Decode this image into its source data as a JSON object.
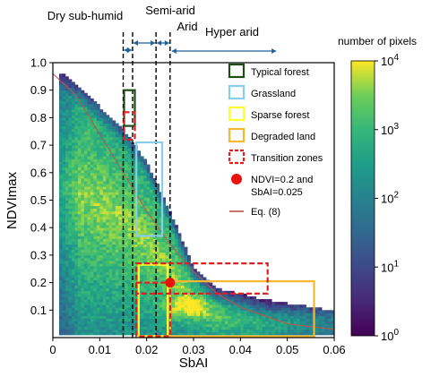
{
  "chart_data": {
    "type": "heatmap",
    "title": "",
    "xlabel": "SbAI",
    "ylabel": "NDVImax",
    "xlim": [
      0,
      0.06
    ],
    "ylim": [
      0,
      1.0
    ],
    "xticks": [
      0,
      0.01,
      0.02,
      0.03,
      0.04,
      0.05,
      0.06
    ],
    "xtick_labels": [
      "0",
      "0.01",
      "0.02",
      "0.03",
      "0.04",
      "0.05",
      "0.06"
    ],
    "yticks": [
      0.1,
      0.2,
      0.3,
      0.4,
      0.5,
      0.6,
      0.7,
      0.8,
      0.9,
      1.0
    ],
    "ytick_labels": [
      "0.1",
      "0.2",
      "0.3",
      "0.4",
      "0.5",
      "0.6",
      "0.7",
      "0.8",
      "0.9",
      "1.0"
    ],
    "colorbar": {
      "title": "number of pixels",
      "scale": "log",
      "range": [
        1,
        10000
      ],
      "ticks": [
        {
          "value": 1,
          "base": "10",
          "exp": "0"
        },
        {
          "value": 10,
          "base": "10",
          "exp": "1"
        },
        {
          "value": 100,
          "base": "10",
          "exp": "2"
        },
        {
          "value": 1000,
          "base": "10",
          "exp": "3"
        },
        {
          "value": 10000,
          "base": "10",
          "exp": "4"
        }
      ],
      "colormap": "viridis"
    },
    "density_ridge": [
      {
        "x": 0.002,
        "y": 0.9
      },
      {
        "x": 0.01,
        "y": 0.78
      },
      {
        "x": 0.015,
        "y": 0.7
      },
      {
        "x": 0.02,
        "y": 0.58
      },
      {
        "x": 0.025,
        "y": 0.4
      },
      {
        "x": 0.03,
        "y": 0.2
      },
      {
        "x": 0.035,
        "y": 0.12
      },
      {
        "x": 0.045,
        "y": 0.08
      }
    ],
    "peak": {
      "x": 0.028,
      "y": 0.11
    },
    "aridity_zones": [
      {
        "label": "Dry sub-humid",
        "x_start": 0.015,
        "x_end": 0.017
      },
      {
        "label": "Semi-arid",
        "x_start": 0.017,
        "x_end": 0.022
      },
      {
        "label": "Arid",
        "x_start": 0.022,
        "x_end": 0.025
      },
      {
        "label": "Hyper arid",
        "x_start": 0.025,
        "x_end": 0.048
      }
    ],
    "zone_boundaries": [
      0.015,
      0.017,
      0.022,
      0.025
    ],
    "rectangles": [
      {
        "name": "Typical forest",
        "color": "#1e4d14",
        "dashed": false,
        "x": [
          0.0152,
          0.0175
        ],
        "y": [
          0.77,
          0.9
        ]
      },
      {
        "name": "Grassland",
        "color": "#87ceeb",
        "dashed": false,
        "x": [
          0.0178,
          0.0233
        ],
        "y": [
          0.37,
          0.71
        ]
      },
      {
        "name": "Sparse forest",
        "color": "#ffff2e",
        "dashed": false,
        "x": [
          0.0183,
          0.0245
        ],
        "y": [
          0.005,
          0.265
        ]
      },
      {
        "name": "Degraded land",
        "color": "#f5b82e",
        "dashed": false,
        "x": [
          0.025,
          0.0557
        ],
        "y": [
          0.005,
          0.205
        ]
      },
      {
        "name": "Transition zones",
        "color": "#e02020",
        "dashed": true,
        "x": [
          0.0152,
          0.0175
        ],
        "y": [
          0.72,
          0.82
        ]
      },
      {
        "name": "Transition zones",
        "color": "#e02020",
        "dashed": true,
        "x": [
          0.0178,
          0.0458
        ],
        "y": [
          0.16,
          0.27
        ]
      },
      {
        "name": "Transition zones",
        "color": "#e02020",
        "dashed": true,
        "x": [
          0.0178,
          0.025
        ],
        "y": [
          0.005,
          0.2
        ]
      }
    ],
    "point": {
      "label_line1": "NDVI=0.2 and",
      "label_line2": "SbAI=0.025",
      "x": 0.025,
      "y": 0.2,
      "color": "#e8140c"
    },
    "curve": {
      "label": "Eq. (8)",
      "color": "#c8504a",
      "points": [
        [
          0.0,
          0.96
        ],
        [
          0.005,
          0.88
        ],
        [
          0.01,
          0.74
        ],
        [
          0.015,
          0.6
        ],
        [
          0.02,
          0.46
        ],
        [
          0.025,
          0.34
        ],
        [
          0.03,
          0.24
        ],
        [
          0.035,
          0.16
        ],
        [
          0.04,
          0.11
        ],
        [
          0.045,
          0.08
        ],
        [
          0.05,
          0.05
        ],
        [
          0.055,
          0.04
        ],
        [
          0.06,
          0.03
        ]
      ]
    },
    "legend": {
      "placement": "top-right",
      "entries": [
        {
          "label": "Typical forest",
          "kind": "box",
          "color": "#1e4d14",
          "dashed": false
        },
        {
          "label": "Grassland",
          "kind": "box",
          "color": "#87ceeb",
          "dashed": false
        },
        {
          "label": "Sparse forest",
          "kind": "box",
          "color": "#ffff2e",
          "dashed": false
        },
        {
          "label": "Degraded land",
          "kind": "box",
          "color": "#f5b82e",
          "dashed": false
        },
        {
          "label": "Transition zones",
          "kind": "box",
          "color": "#e02020",
          "dashed": true
        },
        {
          "label": "NDVI=0.2 and",
          "label2": "SbAI=0.025",
          "kind": "dot",
          "color": "#e8140c"
        },
        {
          "label": "Eq. (8)",
          "kind": "line",
          "color": "#c8504a"
        }
      ]
    },
    "arrow_color": "#1f5f9e",
    "grid": false
  }
}
